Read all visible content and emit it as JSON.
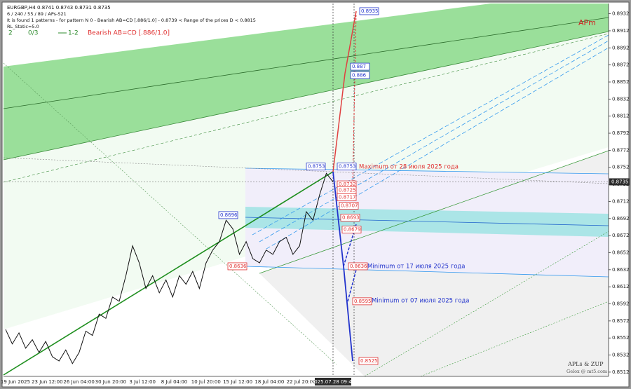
{
  "chart_data": {
    "type": "line",
    "title": "EURGBP,H4  0.8741 0.8743 0.8731 0.8735",
    "info_lines": [
      "6 / 240 / 55 / 89 / APs-S21",
      "It is found 1 patterns  -  for pattern N 0 - Bearish AB=CD [.886/1.0] - 0.8739 < Range of the prices D < 0.8815",
      "RL_Static=5.0"
    ],
    "status_items": [
      {
        "text": "2",
        "color": "#2e8b2e"
      },
      {
        "text": "0/3",
        "color": "#2e8b2e"
      },
      {
        "text": "1-2",
        "color": "#2e8b2e"
      },
      {
        "text": "Bearish AB=CD [.886/1.0]",
        "color": "#e03030"
      }
    ],
    "annotations": [
      {
        "text": "APm",
        "color": "#d02020"
      },
      {
        "text": "Maximum от 28 июля 2025 года",
        "color": "#e03030"
      },
      {
        "text": "Minimum от 17 июля 2025 года",
        "color": "#2233cc"
      },
      {
        "text": "Minimum от 07 июля 2025 года",
        "color": "#2233cc"
      },
      {
        "text": "APLs & ZUP",
        "color": "#333333"
      },
      {
        "text": "Gelox @ mt5.com",
        "color": "#555555"
      }
    ],
    "x_labels": [
      "19 Jun 2025",
      "23 Jun 12:00",
      "26 Jun 04:00",
      "30 Jun 20:00",
      "3 Jul 12:00",
      "8 Jul 04:00",
      "10 Jul 20:00",
      "15 Jul 12:00",
      "18 Jul 04:00",
      "22 Jul 20:00",
      "2025.07.28 09:41"
    ],
    "values": [
      0.8562,
      0.8545,
      0.8558,
      0.854,
      0.855,
      0.8535,
      0.8548,
      0.853,
      0.8525,
      0.8538,
      0.8522,
      0.8535,
      0.856,
      0.8555,
      0.858,
      0.8575,
      0.86,
      0.8595,
      0.8625,
      0.866,
      0.864,
      0.861,
      0.8625,
      0.8605,
      0.862,
      0.86,
      0.8625,
      0.8615,
      0.863,
      0.861,
      0.864,
      0.8655,
      0.8665,
      0.869,
      0.868,
      0.865,
      0.8665,
      0.8645,
      0.864,
      0.8655,
      0.865,
      0.8665,
      0.867,
      0.865,
      0.866,
      0.87,
      0.869,
      0.872,
      0.8745,
      0.8735
    ],
    "color": "#111111",
    "last_price": 0.8735,
    "price_labels": [
      {
        "value": 0.8935,
        "color": "#2233cc"
      },
      {
        "value": 0.887,
        "color": "#2233cc"
      },
      {
        "value": 0.886,
        "color": "#2233cc"
      },
      {
        "value": 0.8753,
        "color": "#2233cc"
      },
      {
        "value": 0.8753,
        "color": "#2233cc"
      },
      {
        "value": 0.8732,
        "color": "#e03030"
      },
      {
        "value": 0.8725,
        "color": "#e03030"
      },
      {
        "value": 0.8717,
        "color": "#e03030"
      },
      {
        "value": 0.8707,
        "color": "#e03030"
      },
      {
        "value": 0.8696,
        "color": "#2233cc"
      },
      {
        "value": 0.8693,
        "color": "#e03030"
      },
      {
        "value": 0.8679,
        "color": "#e03030"
      },
      {
        "value": 0.8636,
        "color": "#e03030"
      },
      {
        "value": 0.8636,
        "color": "#e03030"
      },
      {
        "value": 0.8595,
        "color": "#e03030"
      },
      {
        "value": 0.8525,
        "color": "#e03030"
      }
    ],
    "ylim": [
      0.8507,
      0.8944
    ],
    "yticks": [
      0.8932,
      0.8912,
      0.8892,
      0.8872,
      0.8852,
      0.8832,
      0.8812,
      0.8792,
      0.8772,
      0.8752,
      0.8732,
      0.8712,
      0.8692,
      0.8672,
      0.8652,
      0.8632,
      0.8612,
      0.8592,
      0.8572,
      0.8552,
      0.8532,
      0.8512
    ]
  }
}
